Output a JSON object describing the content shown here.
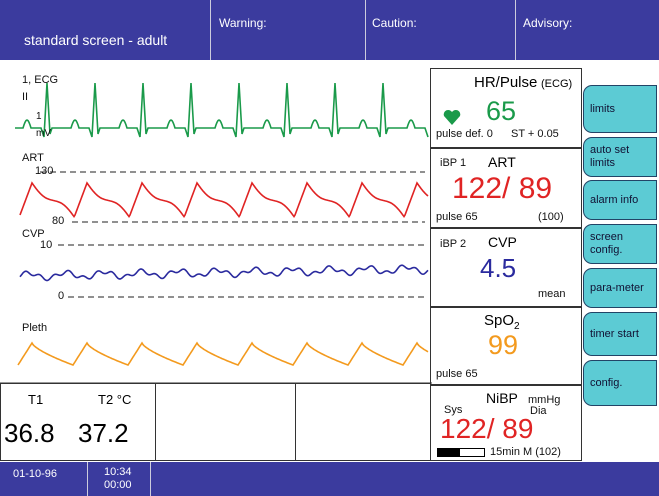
{
  "header": {
    "title": "standard screen - adult",
    "warning": "Warning:",
    "caution": "Caution:",
    "advisory": "Advisory:"
  },
  "waveforms": {
    "ecg": {
      "label": "1, ECG",
      "lead": "II",
      "scale": "1",
      "unit": "mV"
    },
    "art": {
      "label": "ART",
      "high": "130",
      "low": "80"
    },
    "cvp": {
      "label": "CVP",
      "high": "10",
      "low": "0"
    },
    "pleth": {
      "label": "Pleth"
    }
  },
  "panels": {
    "hr": {
      "title": "HR/Pulse",
      "source": "(ECG)",
      "value": "65",
      "pulse": "pulse def. 0",
      "st": "ST + 0.05"
    },
    "art": {
      "channel": "iBP 1",
      "label": "ART",
      "value": "122/ 89",
      "pulse": "pulse 65",
      "mean": "(100)"
    },
    "cvp": {
      "channel": "iBP 2",
      "label": "CVP",
      "value": "4.5",
      "mode": "mean"
    },
    "spo2": {
      "name": "SpO",
      "sub": "2",
      "value": "99",
      "pulse": "pulse 65"
    },
    "nibp": {
      "label": "NiBP",
      "unit": "mmHg",
      "sys": "Sys",
      "dia": "Dia",
      "value": "122/ 89",
      "interval": "15min M (102)"
    }
  },
  "temps": {
    "t1": "T1",
    "t2": "T2 °C",
    "v1": "36.8",
    "v2": "37.2"
  },
  "buttons": [
    "limits",
    "auto set limits",
    "alarm info",
    "screen config.",
    "para-meter",
    "timer start",
    "config."
  ],
  "status": {
    "date": "01-10-96",
    "time": "10:34",
    "elapsed": "00:00"
  }
}
